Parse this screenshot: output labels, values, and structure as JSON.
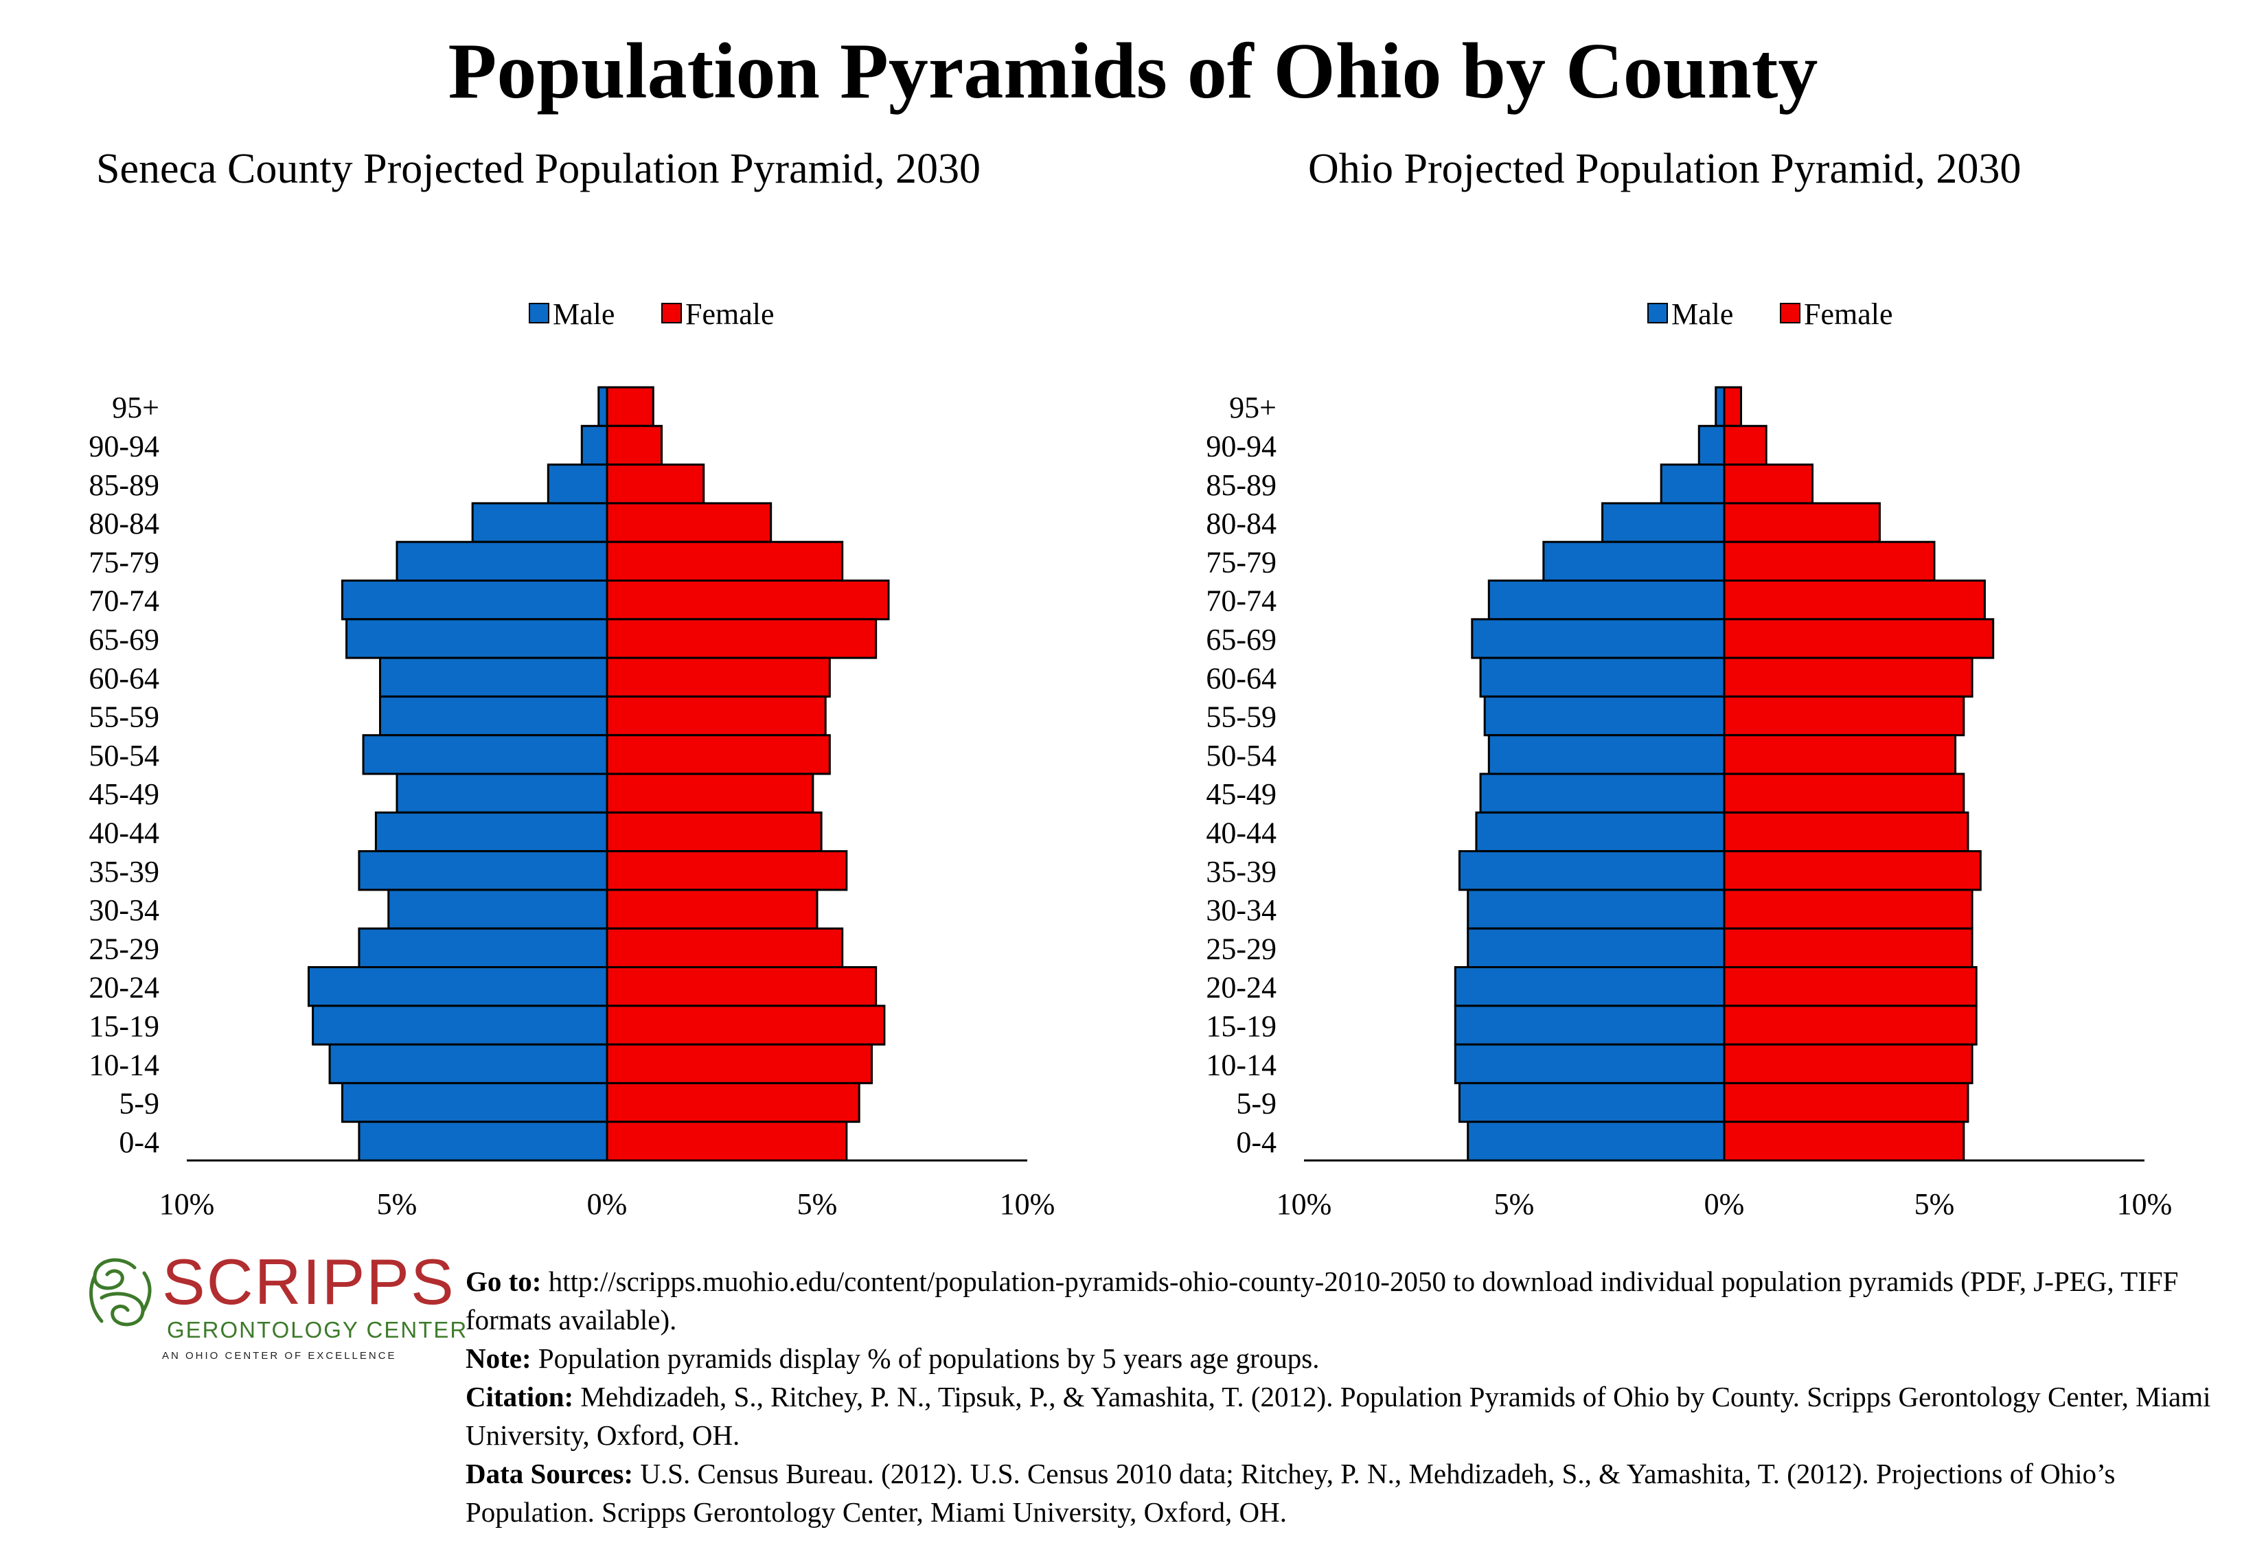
{
  "title": "Population Pyramids of Ohio by County",
  "chart_data": [
    {
      "type": "bar",
      "orientation": "horizontal-pyramid",
      "title": "Seneca County Projected Population Pyramid, 2030",
      "categories": [
        "95+",
        "90-94",
        "85-89",
        "80-84",
        "75-79",
        "70-74",
        "65-69",
        "60-64",
        "55-59",
        "50-54",
        "45-49",
        "40-44",
        "35-39",
        "30-34",
        "25-29",
        "20-24",
        "15-19",
        "10-14",
        "5-9",
        "0-4"
      ],
      "series": [
        {
          "name": "Male",
          "color": "#0c6bc6",
          "values": [
            0.2,
            0.6,
            1.4,
            3.2,
            5.0,
            6.3,
            6.2,
            5.4,
            5.4,
            5.8,
            5.0,
            5.5,
            5.9,
            5.2,
            5.9,
            7.1,
            7.0,
            6.6,
            6.3,
            5.9
          ]
        },
        {
          "name": "Female",
          "color": "#f20000",
          "values": [
            1.1,
            1.3,
            2.3,
            3.9,
            5.6,
            6.7,
            6.4,
            5.3,
            5.2,
            5.3,
            4.9,
            5.1,
            5.7,
            5.0,
            5.6,
            6.4,
            6.6,
            6.3,
            6.0,
            5.7
          ]
        }
      ],
      "xlim": [
        -10,
        10
      ],
      "xticks": [
        "10%",
        "5%",
        "0%",
        "5%",
        "10%"
      ],
      "legend": "top-center"
    },
    {
      "type": "bar",
      "orientation": "horizontal-pyramid",
      "title": "Ohio Projected Population Pyramid, 2030",
      "categories": [
        "95+",
        "90-94",
        "85-89",
        "80-84",
        "75-79",
        "70-74",
        "65-69",
        "60-64",
        "55-59",
        "50-54",
        "45-49",
        "40-44",
        "35-39",
        "30-34",
        "25-29",
        "20-24",
        "15-19",
        "10-14",
        "5-9",
        "0-4"
      ],
      "series": [
        {
          "name": "Male",
          "color": "#0c6bc6",
          "values": [
            0.2,
            0.6,
            1.5,
            2.9,
            4.3,
            5.6,
            6.0,
            5.8,
            5.7,
            5.6,
            5.8,
            5.9,
            6.3,
            6.1,
            6.1,
            6.4,
            6.4,
            6.4,
            6.3,
            6.1
          ]
        },
        {
          "name": "Female",
          "color": "#f20000",
          "values": [
            0.4,
            1.0,
            2.1,
            3.7,
            5.0,
            6.2,
            6.4,
            5.9,
            5.7,
            5.5,
            5.7,
            5.8,
            6.1,
            5.9,
            5.9,
            6.0,
            6.0,
            5.9,
            5.8,
            5.7
          ]
        }
      ],
      "xlim": [
        -10,
        10
      ],
      "xticks": [
        "10%",
        "5%",
        "0%",
        "5%",
        "10%"
      ],
      "legend": "top-center"
    }
  ],
  "logo": {
    "name": "SCRIPPS",
    "subtitle": "GERONTOLOGY CENTER",
    "tagline": "AN OHIO CENTER OF EXCELLENCE",
    "colors": {
      "name": "#b22d2f",
      "subtitle": "#3d7a2a"
    }
  },
  "notes": {
    "goto_label": "Go to:",
    "goto_text": " http://scripps.muohio.edu/content/population-pyramids-ohio-county-2010-2050 to download individual population pyramids (PDF, J-PEG, TIFF formats available).",
    "note_label": "Note:",
    "note_text": " Population pyramids display % of populations by 5 years age groups.",
    "citation_label": "Citation:",
    "citation_text": " Mehdizadeh, S., Ritchey, P. N., Tipsuk, P., & Yamashita, T. (2012). Population Pyramids of Ohio by County. Scripps Gerontology Center, Miami University, Oxford, OH.",
    "sources_label": "Data Sources:",
    "sources_text": " U.S. Census Bureau. (2012). U.S. Census 2010 data; Ritchey, P. N., Mehdizadeh, S., & Yamashita, T. (2012). Projections of Ohio’s Population. Scripps Gerontology Center, Miami University, Oxford, OH."
  }
}
